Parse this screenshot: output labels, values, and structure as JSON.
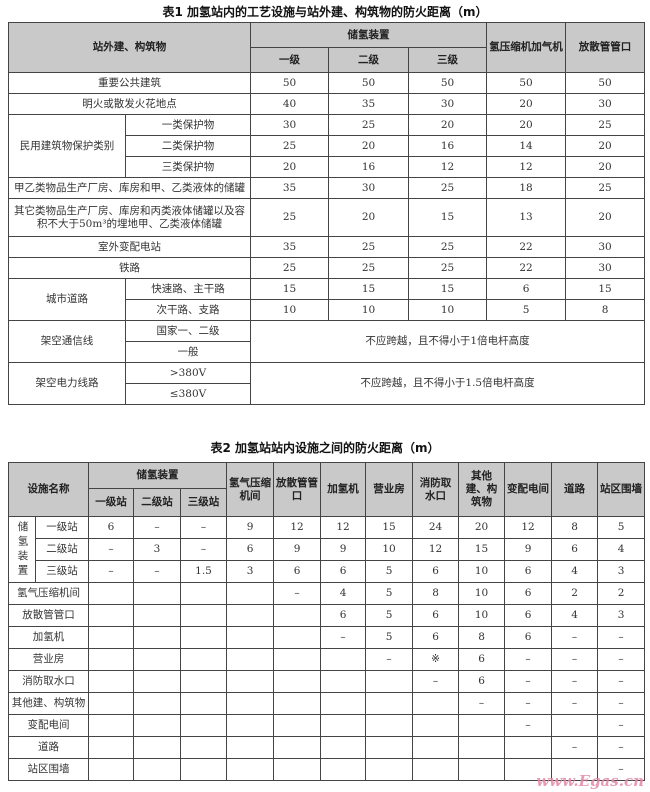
{
  "table1": {
    "title": "表1  加氢站内的工艺设施与站外建、构筑物的防火距离（m）",
    "header": {
      "facility": "站外建、构筑物",
      "storage": "储氢装置",
      "grades": [
        "一级",
        "二级",
        "三级"
      ],
      "compressor": "氢压缩机加气机",
      "vent": "放散管管口"
    },
    "rows": [
      {
        "name": "重要公共建筑",
        "values": [
          "50",
          "50",
          "50",
          "50",
          "50"
        ]
      },
      {
        "name": "明火或散发火花地点",
        "values": [
          "40",
          "35",
          "30",
          "20",
          "30"
        ]
      },
      {
        "group": "民用建筑物保护类别",
        "name": "一类保护物",
        "values": [
          "30",
          "25",
          "20",
          "20",
          "25"
        ]
      },
      {
        "group": "民用建筑物保护类别",
        "name": "二类保护物",
        "values": [
          "25",
          "20",
          "16",
          "14",
          "20"
        ]
      },
      {
        "group": "民用建筑物保护类别",
        "name": "三类保护物",
        "values": [
          "20",
          "16",
          "12",
          "12",
          "20"
        ]
      },
      {
        "name": "甲乙类物品生产厂房、库房和甲、乙类液体的储罐",
        "values": [
          "35",
          "30",
          "25",
          "18",
          "25"
        ]
      },
      {
        "name": "其它类物品生产厂房、库房和丙类液体储罐以及容积不大于50m³的埋地甲、乙类液体储罐",
        "values": [
          "25",
          "20",
          "15",
          "13",
          "20"
        ]
      },
      {
        "name": "室外变配电站",
        "values": [
          "35",
          "25",
          "25",
          "22",
          "30"
        ]
      },
      {
        "name": "铁路",
        "values": [
          "25",
          "25",
          "25",
          "22",
          "30"
        ]
      },
      {
        "group": "城市道路",
        "name": "快速路、主干路",
        "values": [
          "15",
          "15",
          "15",
          "6",
          "15"
        ]
      },
      {
        "group": "城市道路",
        "name": "次干路、支路",
        "values": [
          "10",
          "10",
          "10",
          "5",
          "8"
        ]
      },
      {
        "group": "架空通信线",
        "name": "国家一、二级",
        "note": "不应跨越，且不得小于1倍电杆高度"
      },
      {
        "group": "架空通信线",
        "name": "一般",
        "note": "不应跨越，且不得小于1倍电杆高度"
      },
      {
        "group": "架空电力线路",
        "name": ">380V",
        "note": "不应跨越，且不得小于1.5倍电杆高度"
      },
      {
        "group": "架空电力线路",
        "name": "≤380V",
        "note": "不应跨越，且不得小于1.5倍电杆高度"
      }
    ]
  },
  "table2": {
    "title": "表2  加氢站站内设施之间的防火距离（m）",
    "header": {
      "facility": "设施名称",
      "storage": "储氢装置",
      "grades": [
        "一级站",
        "二级站",
        "三级站"
      ],
      "columns": [
        "氢气压缩机间",
        "放散管管口",
        "加氢机",
        "营业房",
        "消防取水口",
        "其他建、构筑物",
        "变配电间",
        "道路",
        "站区围墙"
      ]
    },
    "rows": [
      {
        "group": "储氢装置",
        "name": "一级站",
        "values": [
          "6",
          "–",
          "–",
          "9",
          "12",
          "12",
          "15",
          "24",
          "20",
          "12",
          "8",
          "5"
        ]
      },
      {
        "group": "储氢装置",
        "name": "二级站",
        "values": [
          "–",
          "3",
          "–",
          "6",
          "9",
          "9",
          "10",
          "12",
          "15",
          "9",
          "6",
          "4"
        ]
      },
      {
        "group": "储氢装置",
        "name": "三级站",
        "values": [
          "–",
          "–",
          "1.5",
          "3",
          "6",
          "6",
          "5",
          "6",
          "10",
          "6",
          "4",
          "3"
        ]
      },
      {
        "name": "氢气压缩机间",
        "values": [
          "",
          "",
          "",
          "",
          "–",
          "4",
          "5",
          "8",
          "10",
          "6",
          "2",
          "2"
        ]
      },
      {
        "name": "放散管管口",
        "values": [
          "",
          "",
          "",
          "",
          "",
          "6",
          "5",
          "6",
          "10",
          "6",
          "4",
          "3"
        ]
      },
      {
        "name": "加氢机",
        "values": [
          "",
          "",
          "",
          "",
          "",
          "–",
          "5",
          "6",
          "8",
          "6",
          "–",
          "–"
        ]
      },
      {
        "name": "营业房",
        "values": [
          "",
          "",
          "",
          "",
          "",
          "",
          "–",
          "※",
          "6",
          "–",
          "–",
          "–"
        ]
      },
      {
        "name": "消防取水口",
        "values": [
          "",
          "",
          "",
          "",
          "",
          "",
          "",
          "–",
          "6",
          "–",
          "–",
          "–"
        ]
      },
      {
        "name": "其他建、构筑物",
        "values": [
          "",
          "",
          "",
          "",
          "",
          "",
          "",
          "",
          "–",
          "–",
          "–",
          "–"
        ]
      },
      {
        "name": "变配电间",
        "values": [
          "",
          "",
          "",
          "",
          "",
          "",
          "",
          "",
          "",
          "–",
          "",
          "–"
        ]
      },
      {
        "name": "道路",
        "values": [
          "",
          "",
          "",
          "",
          "",
          "",
          "",
          "",
          "",
          "",
          "–",
          "–"
        ]
      },
      {
        "name": "站区围墙",
        "values": [
          "",
          "",
          "",
          "",
          "",
          "",
          "",
          "",
          "",
          "",
          "",
          "–"
        ]
      }
    ]
  },
  "watermark": "www.Egas.cn"
}
